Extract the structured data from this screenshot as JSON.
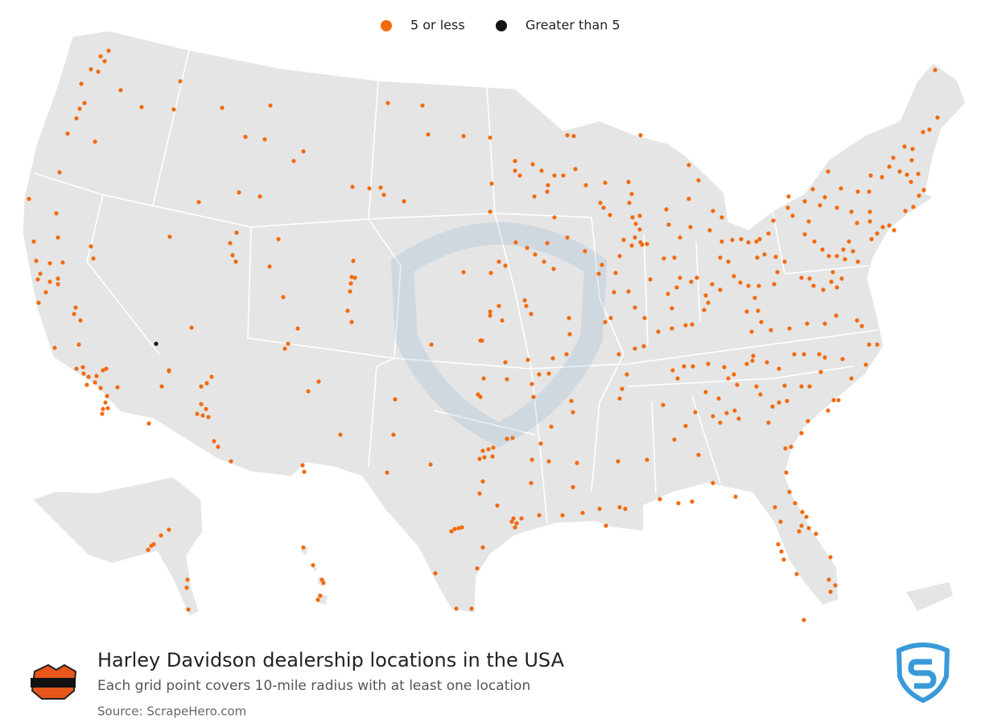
{
  "legend": {
    "items": [
      {
        "label": "5 or less",
        "color": "#f26b0f"
      },
      {
        "label": "Greater than 5",
        "color": "#141414"
      }
    ]
  },
  "footer": {
    "title": "Harley Davidson dealership locations in the USA",
    "subtitle": "Each grid point covers 10-mile radius with at least one location",
    "source": "Source: ScrapeHero.com"
  }
}
